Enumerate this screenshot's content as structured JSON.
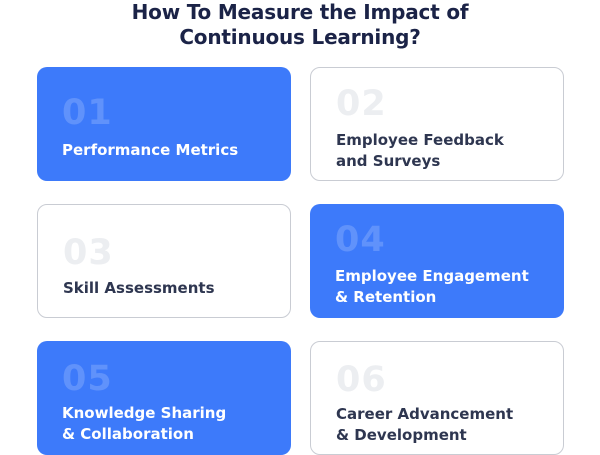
{
  "title": {
    "line1": "How To Measure the Impact of",
    "line2": "Continuous Learning?"
  },
  "cards": [
    {
      "number": "01",
      "lines": [
        "Performance Metrics"
      ],
      "style": "filled"
    },
    {
      "number": "02",
      "lines": [
        "Employee Feedback",
        "and Surveys"
      ],
      "style": "outline"
    },
    {
      "number": "03",
      "lines": [
        "Skill Assessments"
      ],
      "style": "outline"
    },
    {
      "number": "04",
      "lines": [
        "Employee Engagement",
        "& Retention"
      ],
      "style": "filled"
    },
    {
      "number": "05",
      "lines": [
        "Knowledge Sharing",
        "& Collaboration"
      ],
      "style": "filled"
    },
    {
      "number": "06",
      "lines": [
        "Career Advancement",
        "& Development"
      ],
      "style": "outline"
    }
  ],
  "colors": {
    "accent": "#3d7afa",
    "title": "#1b2347",
    "outline_border": "#c9ccd3"
  }
}
